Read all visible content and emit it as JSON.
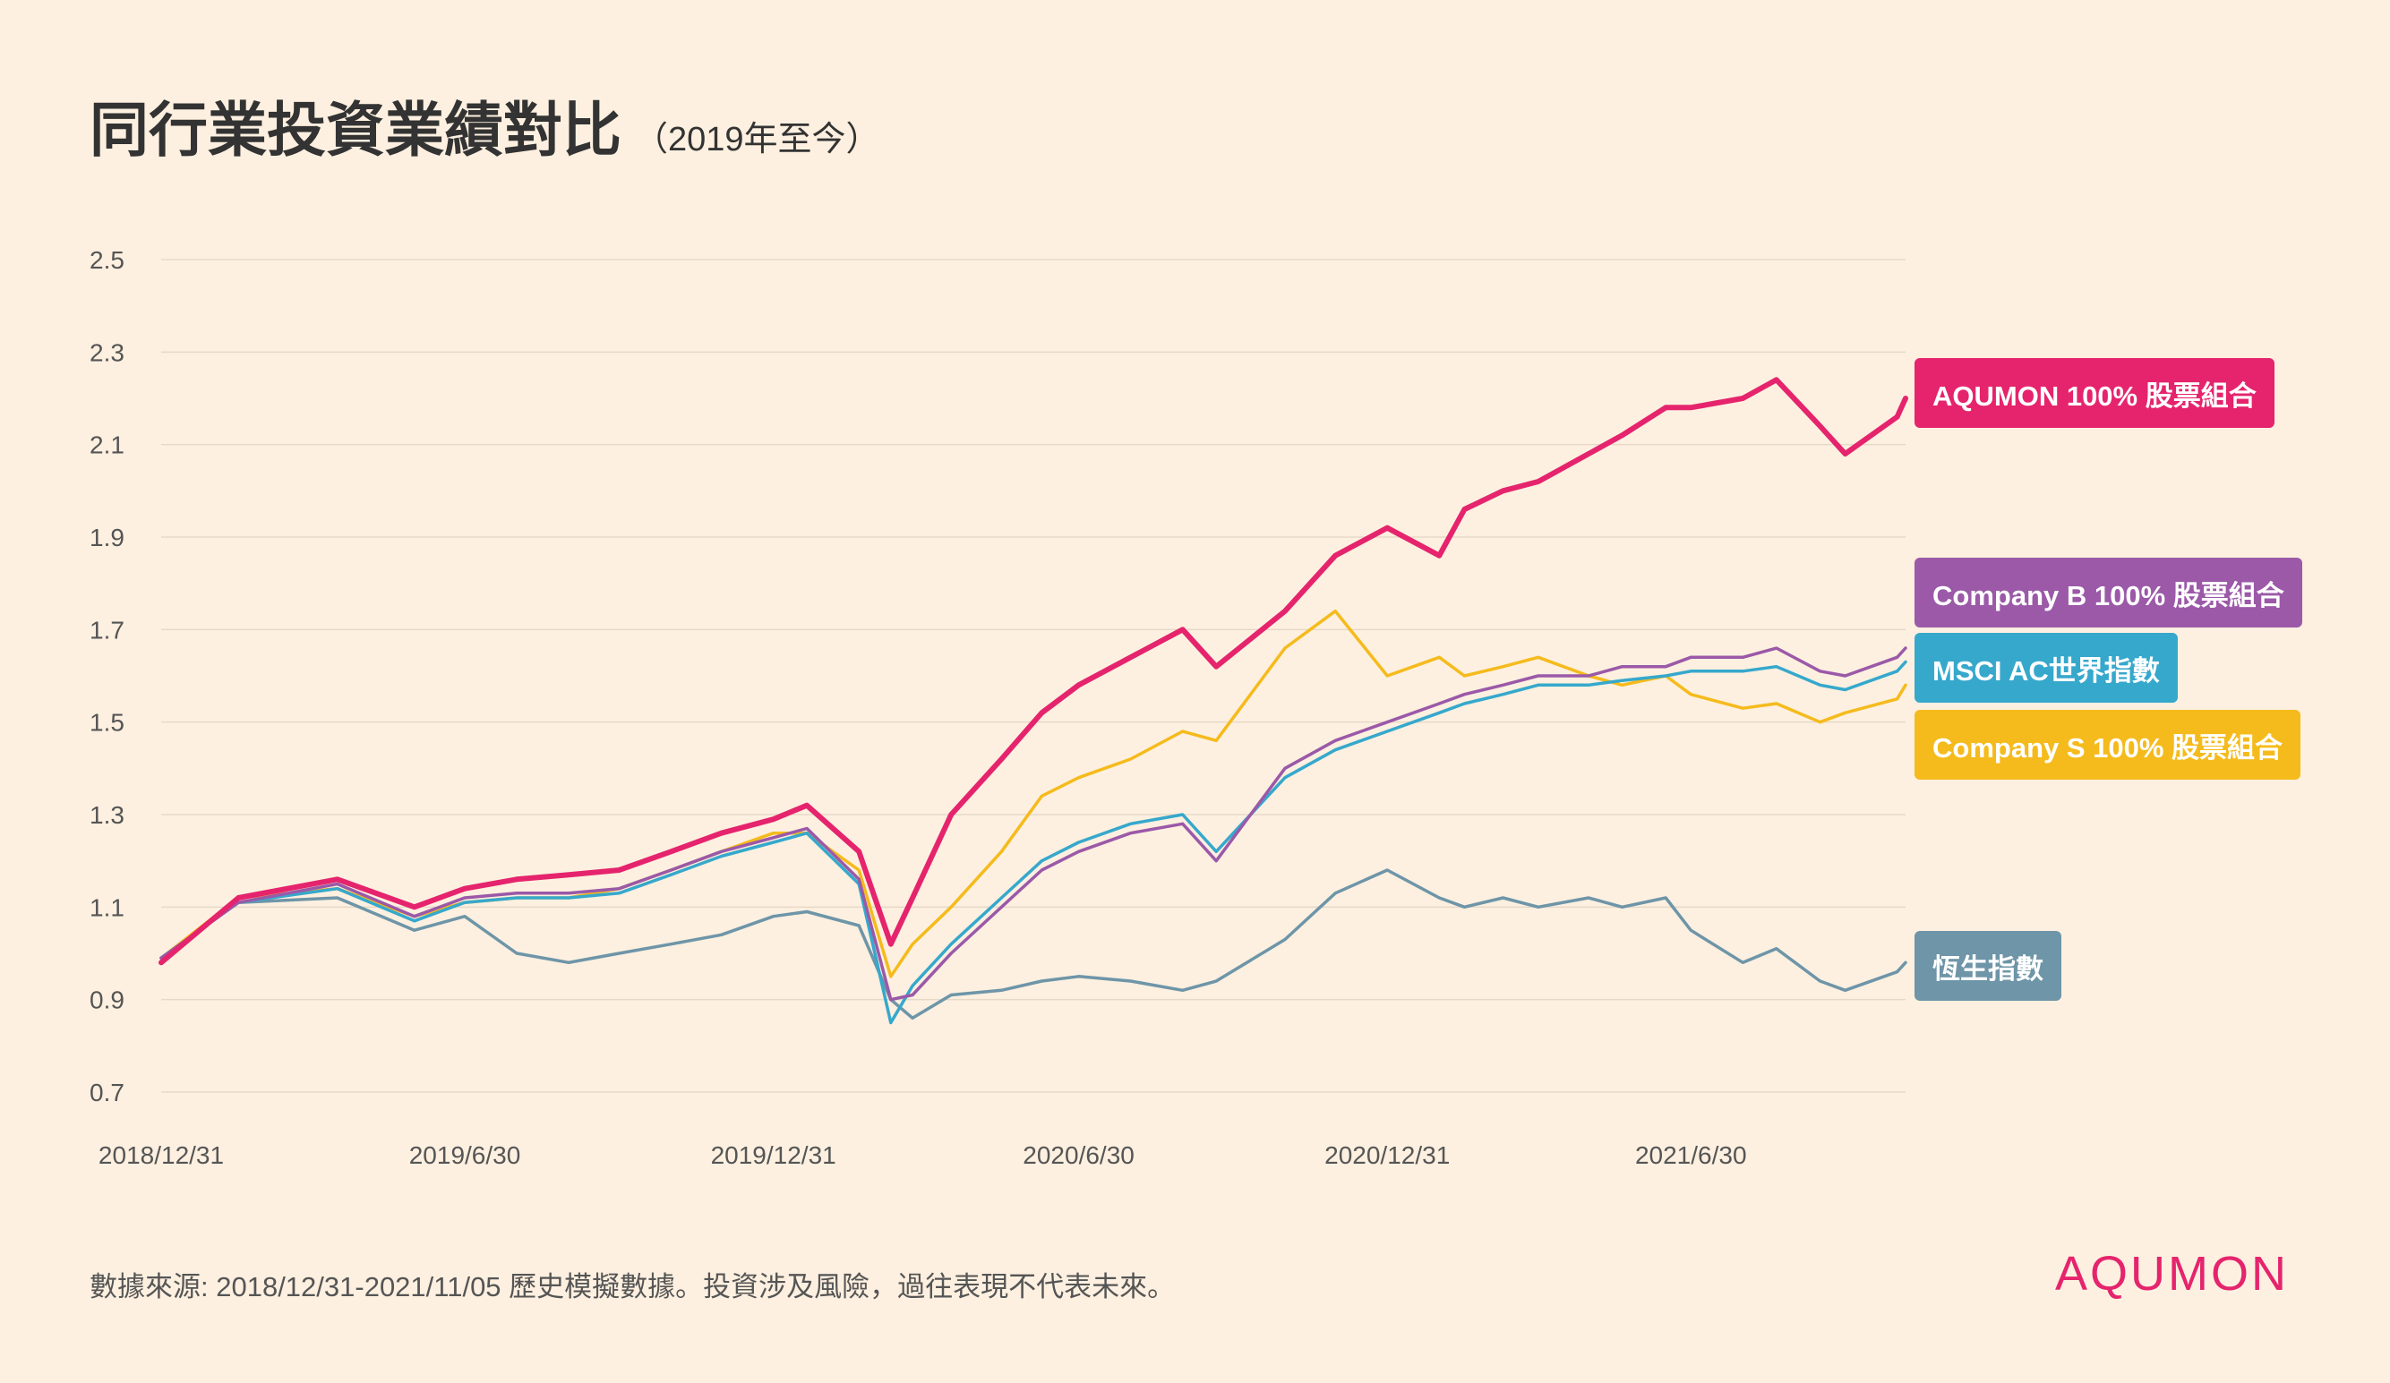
{
  "header": {
    "title": "同行業投資業績對比",
    "subtitle": "（2019年至今）"
  },
  "chart_data": {
    "type": "line",
    "title": "同行業投資業績對比",
    "subtitle": "（2019年至今）",
    "xlabel": "",
    "ylabel": "",
    "ylim": [
      0.7,
      2.5
    ],
    "yticks": [
      "2.5",
      "2.3",
      "2.1",
      "1.9",
      "1.7",
      "1.5",
      "1.3",
      "1.1",
      "0.9",
      "0.7"
    ],
    "xticks": [
      "2018/12/31",
      "2019/6/30",
      "2019/12/31",
      "2020/6/30",
      "2020/12/31",
      "2021/6/30"
    ],
    "xrange": [
      "2018/12/31",
      "2021/11/05"
    ],
    "grid": "horizontal",
    "x": [
      "2018/12/31",
      "2019/02/15",
      "2019/04/15",
      "2019/05/31",
      "2019/06/30",
      "2019/07/31",
      "2019/08/31",
      "2019/09/30",
      "2019/10/31",
      "2019/11/30",
      "2019/12/31",
      "2020/01/20",
      "2020/02/20",
      "2020/03/10",
      "2020/03/23",
      "2020/04/15",
      "2020/05/15",
      "2020/06/08",
      "2020/06/30",
      "2020/07/31",
      "2020/08/31",
      "2020/09/20",
      "2020/10/31",
      "2020/11/30",
      "2020/12/31",
      "2021/01/31",
      "2021/02/15",
      "2021/03/10",
      "2021/03/31",
      "2021/04/30",
      "2021/05/20",
      "2021/06/15",
      "2021/06/30",
      "2021/07/31",
      "2021/08/20",
      "2021/09/15",
      "2021/09/30",
      "2021/10/31",
      "2021/11/05"
    ],
    "series": [
      {
        "name": "AQUMON 100% 股票組合",
        "color": "#e5246d",
        "values": [
          0.98,
          1.12,
          1.16,
          1.1,
          1.14,
          1.16,
          1.17,
          1.18,
          1.22,
          1.26,
          1.29,
          1.32,
          1.22,
          1.02,
          1.12,
          1.3,
          1.42,
          1.52,
          1.58,
          1.64,
          1.7,
          1.62,
          1.74,
          1.86,
          1.92,
          1.86,
          1.96,
          2.0,
          2.02,
          2.08,
          2.12,
          2.18,
          2.18,
          2.2,
          2.24,
          2.14,
          2.08,
          2.16,
          2.2
        ]
      },
      {
        "name": "Company B 100% 股票組合",
        "color": "#9b59a8",
        "values": [
          0.99,
          1.11,
          1.15,
          1.08,
          1.12,
          1.13,
          1.13,
          1.14,
          1.18,
          1.22,
          1.25,
          1.27,
          1.16,
          0.9,
          0.91,
          1.0,
          1.1,
          1.18,
          1.22,
          1.26,
          1.28,
          1.2,
          1.4,
          1.46,
          1.5,
          1.54,
          1.56,
          1.58,
          1.6,
          1.6,
          1.62,
          1.62,
          1.64,
          1.64,
          1.66,
          1.61,
          1.6,
          1.64,
          1.66
        ]
      },
      {
        "name": "MSCI AC世界指數",
        "color": "#36a8cc",
        "values": [
          0.99,
          1.11,
          1.14,
          1.07,
          1.11,
          1.12,
          1.12,
          1.13,
          1.17,
          1.21,
          1.24,
          1.26,
          1.15,
          0.85,
          0.93,
          1.02,
          1.12,
          1.2,
          1.24,
          1.28,
          1.3,
          1.22,
          1.38,
          1.44,
          1.48,
          1.52,
          1.54,
          1.56,
          1.58,
          1.58,
          1.59,
          1.6,
          1.61,
          1.61,
          1.62,
          1.58,
          1.57,
          1.61,
          1.63
        ]
      },
      {
        "name": "Company S 100% 股票組合",
        "color": "#f5bb1c",
        "values": [
          0.99,
          1.12,
          1.14,
          1.08,
          1.11,
          1.12,
          1.12,
          1.14,
          1.18,
          1.22,
          1.26,
          1.26,
          1.18,
          0.95,
          1.02,
          1.1,
          1.22,
          1.34,
          1.38,
          1.42,
          1.48,
          1.46,
          1.66,
          1.74,
          1.6,
          1.64,
          1.6,
          1.62,
          1.64,
          1.6,
          1.58,
          1.6,
          1.56,
          1.53,
          1.54,
          1.5,
          1.52,
          1.55,
          1.58
        ]
      },
      {
        "name": "恆生指數",
        "color": "#6e95a8",
        "values": [
          0.99,
          1.11,
          1.12,
          1.05,
          1.08,
          1.0,
          0.98,
          1.0,
          1.02,
          1.04,
          1.08,
          1.09,
          1.06,
          0.9,
          0.86,
          0.91,
          0.92,
          0.94,
          0.95,
          0.94,
          0.92,
          0.94,
          1.03,
          1.13,
          1.18,
          1.12,
          1.1,
          1.12,
          1.1,
          1.12,
          1.1,
          1.12,
          1.05,
          0.98,
          1.01,
          0.94,
          0.92,
          0.96,
          0.98
        ]
      }
    ]
  },
  "legend": [
    {
      "label": "AQUMON 100% 股票組合",
      "color": "#e5246d"
    },
    {
      "label": "Company B 100% 股票組合",
      "color": "#9b59a8"
    },
    {
      "label": "MSCI AC世界指數",
      "color": "#36a8cc"
    },
    {
      "label": "Company S 100% 股票組合",
      "color": "#f5bb1c"
    },
    {
      "label": "恆生指數",
      "color": "#6e95a8"
    }
  ],
  "footer": {
    "note": "數據來源: 2018/12/31-2021/11/05 歷史模擬數據。投資涉及風險，過往表現不代表未來。",
    "logo": "AQUMON"
  },
  "colors": {
    "background": "#fdf0e0",
    "brand": "#e5246d"
  }
}
